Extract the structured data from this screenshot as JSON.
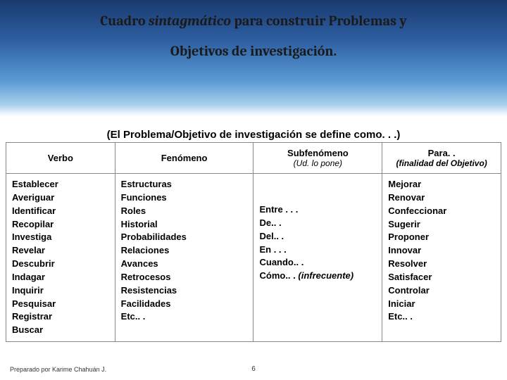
{
  "header": {
    "title_prefix": "Cuadro ",
    "title_emph": "sintagmático",
    "title_suffix": " para construir Problemas y",
    "title_line2": "Objetivos de investigación.",
    "subtitle": "(El Problema/Objetivo de investigación se define como. . .)"
  },
  "table": {
    "columns": [
      {
        "header": "Verbo",
        "sub": ""
      },
      {
        "header": "Fenómeno",
        "sub": ""
      },
      {
        "header": "Subfenómeno",
        "sub": "(Ud. lo pone)"
      },
      {
        "header": "Para. .",
        "sub": "(finalidad del Objetivo)"
      }
    ],
    "cells": {
      "verbo": [
        "Establecer",
        "Averiguar",
        "Identificar",
        "Recopilar",
        "Investiga",
        "Revelar",
        "Descubrir",
        "Indagar",
        "Inquirir",
        "Pesquisar",
        "Registrar",
        "Buscar"
      ],
      "fenomeno": [
        "Estructuras",
        "Funciones",
        "Roles",
        "Historial",
        "Probabilidades",
        "Relaciones",
        "Avances",
        "Retrocesos",
        "Resistencias",
        "Facilidades",
        "Etc.. ."
      ],
      "subfenomeno": [
        "Entre . . .",
        "De.. .",
        "Del.. .",
        "En . . .",
        "Cuando.. ."
      ],
      "subfenomeno_last_prefix": "Cómo.. . ",
      "subfenomeno_last_emph": "(infrecuente)",
      "para": [
        "Mejorar",
        "Renovar",
        "Confeccionar",
        "Sugerir",
        "Proponer",
        "Innovar",
        "Resolver",
        "Satisfacer",
        "Controlar",
        "Iniciar",
        "Etc.. ."
      ]
    }
  },
  "footer": {
    "author": "Preparado por Karime Chahuán J.",
    "page": "6"
  },
  "colors": {
    "header_top": "#1a3a6e",
    "header_bottom": "#a8d0ed",
    "border": "#888888",
    "text": "#000000"
  }
}
